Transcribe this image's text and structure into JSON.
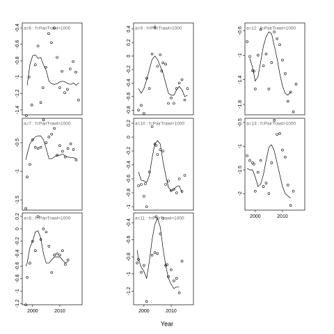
{
  "xlabel": "Year",
  "chart_data": [
    {
      "type": "scatter",
      "title": "a=6 : f=PairTrawl>1000",
      "x": [
        1997.7,
        1998.7,
        1999.7,
        2001,
        2002,
        2003,
        2003.8,
        2004.9,
        2005.9,
        2006.9,
        2008,
        2009,
        2010,
        2010.8,
        2011.8,
        2012.8,
        2013.8,
        2014.9,
        2015.9,
        2016.9
      ],
      "values": [
        -1.47,
        -1.0,
        -1.34,
        -0.85,
        -0.62,
        -1.31,
        -1.13,
        -0.88,
        -0.47,
        -0.58,
        -0.4,
        -0.76,
        -1.13,
        -0.93,
        -1.19,
        -1.15,
        -0.9,
        -0.81,
        -0.94,
        -1.28
      ],
      "smooth_x": [
        1998,
        1999,
        2000,
        2001,
        2002,
        2003,
        2004,
        2005,
        2006,
        2007,
        2008,
        2009,
        2010,
        2011,
        2012,
        2013,
        2014,
        2015,
        2016,
        2017
      ],
      "smooth_values": [
        -1.1,
        -0.85,
        -0.74,
        -0.73,
        -0.77,
        -0.76,
        -0.85,
        -0.92,
        -1.05,
        -1.08,
        -1.09,
        -1.08,
        -1.06,
        -1.05,
        -1.06,
        -1.08,
        -1.09,
        -1.07,
        -1.1,
        -1.07
      ],
      "xlim": [
        1996.2,
        2018.2
      ],
      "ylim": [
        -1.46,
        -0.34
      ],
      "yticks": [
        -0.4,
        -0.6,
        -0.8,
        -1.0,
        -1.2,
        -1.4
      ]
    },
    {
      "type": "scatter",
      "title": "a=9 : f=PairTrawl>1000",
      "x": [
        1998,
        1999,
        2000,
        2001,
        2002,
        2003,
        2004,
        2005,
        2006,
        2006.5,
        2007,
        2008,
        2009,
        2010,
        2011,
        2012,
        2013,
        2014,
        2015,
        2016
      ],
      "values": [
        -0.8,
        -0.73,
        -0.85,
        -0.33,
        -0.48,
        0.03,
        0.43,
        -0.15,
        0.02,
        -0.22,
        -0.1,
        -0.12,
        -0.7,
        -0.62,
        -0.7,
        -0.48,
        -0.4,
        -0.35,
        -0.65,
        -0.48
      ],
      "smooth_x": [
        1998,
        1999,
        2000,
        2001,
        2002,
        2003,
        2004,
        2005,
        2006,
        2007,
        2008,
        2009,
        2010,
        2011,
        2012,
        2013,
        2014,
        2015,
        2016
      ],
      "smooth_values": [
        -0.48,
        -0.55,
        -0.48,
        -0.35,
        -0.2,
        -0.05,
        0.0,
        -0.05,
        -0.15,
        -0.25,
        -0.4,
        -0.55,
        -0.58,
        -0.58,
        -0.5,
        -0.45,
        -0.5,
        -0.6,
        -0.58
      ],
      "xlim": [
        1996.2,
        2018.2
      ],
      "ylim": [
        -0.87,
        0.49
      ],
      "yticks": [
        0.4,
        0.2,
        0.0,
        -0.2,
        -0.4,
        -0.6,
        -0.8
      ]
    },
    {
      "type": "scatter",
      "title": "a=12 : f=PairTrawl>1000",
      "x": [
        1997,
        1998,
        1999,
        1999.5,
        2000,
        2001,
        2002,
        2003,
        2004,
        2005,
        2006,
        2007,
        2008,
        2009,
        2010,
        2011,
        2012,
        2013,
        2014,
        2015
      ],
      "values": [
        -0.78,
        -1.02,
        -1.25,
        -1.26,
        -1.55,
        -1.0,
        -0.58,
        -1.17,
        -0.98,
        -1.55,
        -1.12,
        -0.62,
        -0.73,
        -0.83,
        -1.08,
        -1.3,
        -1.75,
        -1.6,
        -1.92,
        -1.47
      ],
      "smooth_x": [
        1998,
        1999,
        2000,
        2001,
        2002,
        2003,
        2004,
        2005,
        2006,
        2007,
        2008,
        2009,
        2010,
        2011,
        2012,
        2013
      ],
      "smooth_values": [
        -1.05,
        -1.2,
        -1.42,
        -1.35,
        -1.1,
        -0.85,
        -0.7,
        -0.62,
        -0.65,
        -0.85,
        -1.05,
        -1.3,
        -1.5,
        -1.62,
        -1.65,
        -1.6
      ],
      "xlim": [
        1996.2,
        2018.2
      ],
      "ylim": [
        -1.97,
        -0.475
      ],
      "yticks": [
        -0.6,
        -1.0,
        -1.4,
        -1.8
      ]
    },
    {
      "type": "scatter",
      "title": "a=7 : f=PairTrawl>1000",
      "x": [
        1997.5,
        1998,
        1999,
        2000,
        2001,
        2002,
        2003,
        2004,
        2005,
        2006,
        2007,
        2008,
        2009,
        2010,
        2011,
        2012,
        2013,
        2014,
        2015,
        2016
      ],
      "values": [
        -1.65,
        -1.1,
        -0.88,
        -0.45,
        -0.58,
        -0.6,
        -0.58,
        -0.1,
        -0.5,
        -0.4,
        -0.35,
        -0.25,
        -0.72,
        -0.55,
        -0.65,
        -0.75,
        -0.6,
        -0.52,
        -0.62,
        -0.8
      ],
      "smooth_x": [
        1997.5,
        1998,
        1999,
        2000,
        2001,
        2002,
        2003,
        2004,
        2005,
        2006,
        2007,
        2008,
        2009,
        2010,
        2011,
        2012,
        2013,
        2014,
        2015,
        2016
      ],
      "smooth_values": [
        -0.8,
        -0.7,
        -0.52,
        -0.45,
        -0.4,
        -0.38,
        -0.38,
        -0.45,
        -0.6,
        -0.78,
        -0.78,
        -0.75,
        -0.72,
        -0.72,
        -0.7,
        -0.73,
        -0.75,
        -0.76,
        -0.76,
        -0.78
      ],
      "xlim": [
        1996.2,
        2018.2
      ],
      "ylim": [
        -1.68,
        -0.073
      ],
      "yticks": [
        -0.5,
        -1.0,
        -1.5
      ]
    },
    {
      "type": "scatter",
      "title": "a=10 : f=PairTrawl>1000",
      "x": [
        1998,
        1999,
        2000,
        2000.5,
        2001,
        2002,
        2003,
        2004,
        2004.5,
        2005,
        2006,
        2007,
        2008,
        2009,
        2010,
        2011,
        2012,
        2013,
        2014,
        2015
      ],
      "values": [
        -0.7,
        -0.68,
        -0.85,
        -0.67,
        -1.0,
        -0.5,
        0.15,
        -0.1,
        -0.12,
        -0.25,
        -0.18,
        -0.2,
        -0.68,
        -0.63,
        -0.77,
        -0.75,
        -0.8,
        -0.6,
        -0.78,
        -0.55
      ],
      "smooth_x": [
        1998,
        1999,
        2000,
        2001,
        2002,
        2003,
        2004,
        2005,
        2006,
        2007,
        2008,
        2009,
        2010,
        2011,
        2012,
        2013,
        2014
      ],
      "smooth_values": [
        -0.5,
        -0.62,
        -0.63,
        -0.65,
        -0.55,
        -0.3,
        -0.1,
        -0.05,
        -0.1,
        -0.35,
        -0.55,
        -0.72,
        -0.77,
        -0.75,
        -0.71,
        -0.7,
        -0.8
      ],
      "xlim": [
        1996.2,
        2018.2
      ],
      "ylim": [
        -1.05,
        0.27
      ],
      "yticks": [
        0.2,
        0.0,
        -0.2,
        -0.4,
        -0.6,
        -0.8,
        -1.0
      ]
    },
    {
      "type": "scatter",
      "title": "a=13 : f=PairTrawl>1000",
      "x": [
        1997,
        1998,
        1999,
        1999.5,
        2000,
        2001,
        2002,
        2003,
        2004,
        2005,
        2006,
        2007,
        2008,
        2009,
        2010,
        2011,
        2012,
        2013,
        2014
      ],
      "values": [
        -1.2,
        -1.3,
        -1.35,
        -1.38,
        -1.95,
        -1.55,
        -1.3,
        -1.85,
        -1.78,
        -2.0,
        -1.35,
        -0.45,
        -0.75,
        -0.73,
        -1.08,
        -1.23,
        -1.82,
        -2.25,
        -1.95
      ],
      "smooth_x": [
        1997,
        1998,
        1999,
        2000,
        2001,
        2002,
        2003,
        2004,
        2005,
        2006,
        2007,
        2008,
        2009,
        2010,
        2011,
        2012,
        2013
      ],
      "smooth_values": [
        -1.47,
        -1.5,
        -1.5,
        -1.65,
        -1.85,
        -1.8,
        -1.6,
        -1.3,
        -1.02,
        -0.97,
        -1.1,
        -1.35,
        -1.6,
        -1.85,
        -2.0,
        -2.05,
        -2.1
      ],
      "xlim": [
        1996.2,
        2018.2
      ],
      "ylim": [
        -2.35,
        -0.41
      ],
      "yticks": [
        -0.5,
        -1.0,
        -1.5,
        -2.0
      ],
      "xticks": [
        2000,
        2010
      ]
    },
    {
      "type": "scatter",
      "title": "a=8 : f=PairTrawl>1000",
      "x": [
        1997.5,
        1998,
        1999,
        2000,
        2001,
        2002,
        2003,
        2004,
        2005,
        2006,
        2007,
        2008,
        2009,
        2010,
        2011,
        2012,
        2013
      ],
      "values": [
        -1.22,
        -0.78,
        -0.55,
        -0.2,
        -0.35,
        0.2,
        -0.17,
        0.0,
        -0.05,
        -0.28,
        -0.7,
        -0.42,
        -0.4,
        -0.42,
        -0.35,
        -0.57,
        -0.5
      ],
      "smooth_x": [
        1997.5,
        1998,
        1999,
        2000,
        2001,
        2002,
        2003,
        2004,
        2005,
        2006,
        2007,
        2008,
        2009,
        2010,
        2011,
        2012,
        2013
      ],
      "smooth_values": [
        -0.6,
        -0.55,
        -0.3,
        -0.2,
        -0.05,
        -0.03,
        -0.15,
        -0.4,
        -0.55,
        -0.55,
        -0.5,
        -0.45,
        -0.45,
        -0.45,
        -0.5,
        -0.55,
        -0.53
      ],
      "xlim": [
        1996.2,
        2018.2
      ],
      "ylim": [
        -1.22,
        0.256
      ],
      "yticks": [
        0.2,
        0.0,
        -0.2,
        -0.4,
        -0.6,
        -0.8,
        -1.0,
        -1.2
      ],
      "xticks": [
        2000,
        2010
      ]
    },
    {
      "type": "scatter",
      "title": "a=11 : f=PairTrawl>1000",
      "x": [
        1997.5,
        1998,
        1999,
        2000,
        2001,
        2003,
        2004,
        2004.5,
        2005,
        2006,
        2007,
        2008,
        2008.5,
        2009,
        2010,
        2011,
        2012,
        2013,
        2014
      ],
      "values": [
        -0.87,
        -0.83,
        -0.98,
        -0.9,
        -1.32,
        -0.78,
        -0.75,
        -0.33,
        -0.76,
        -0.53,
        -0.35,
        -0.9,
        -0.89,
        -1.03,
        -0.95,
        -1.08,
        -1.05,
        -1.22,
        -0.85
      ],
      "smooth_x": [
        1997.5,
        1998,
        1999,
        2000,
        2001,
        2002,
        2003,
        2004,
        2005,
        2006,
        2007,
        2008,
        2009,
        2010,
        2011,
        2012,
        2013
      ],
      "smooth_values": [
        -0.72,
        -0.83,
        -0.92,
        -0.97,
        -1.05,
        -0.85,
        -0.6,
        -0.42,
        -0.35,
        -0.45,
        -0.7,
        -0.9,
        -1.05,
        -1.12,
        -1.17,
        -1.15,
        -1.15
      ],
      "xlim": [
        1996.2,
        2018.2
      ],
      "ylim": [
        -1.36,
        -0.286
      ],
      "yticks": [
        -0.4,
        -0.6,
        -0.8,
        -1.0,
        -1.2
      ],
      "xticks": [
        2000,
        2010
      ]
    }
  ]
}
